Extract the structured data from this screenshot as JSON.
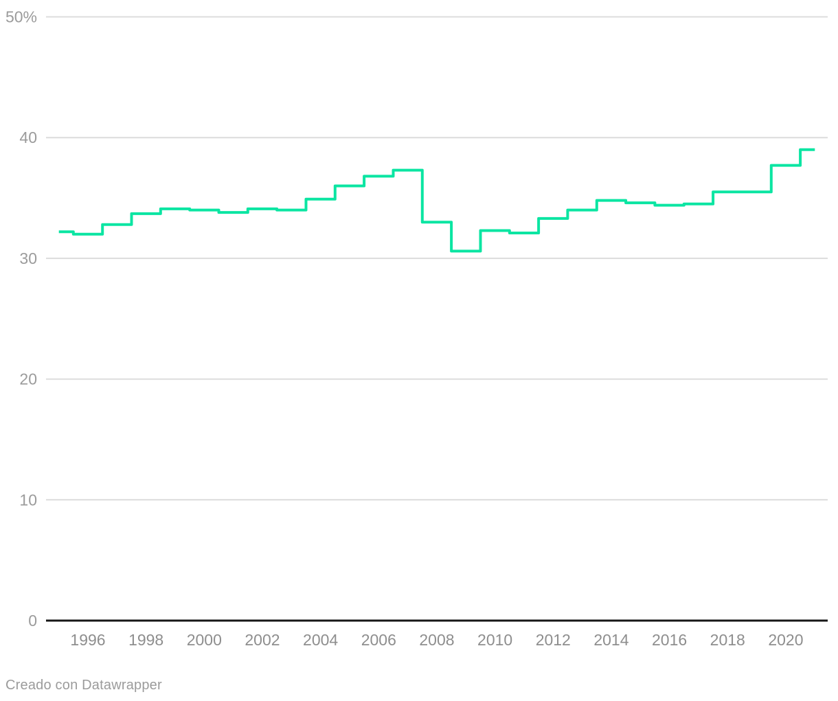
{
  "chart_data": {
    "type": "line",
    "line_style": "step-center",
    "title": "",
    "xlabel": "",
    "ylabel": "",
    "legend": "none",
    "grid": true,
    "unit": "%",
    "xlim": [
      1995,
      2021
    ],
    "ylim": [
      0,
      50
    ],
    "x": [
      1995,
      1996,
      1997,
      1998,
      1999,
      2000,
      2001,
      2002,
      2003,
      2004,
      2005,
      2006,
      2007,
      2008,
      2009,
      2010,
      2011,
      2012,
      2013,
      2014,
      2015,
      2016,
      2017,
      2018,
      2019,
      2020,
      2021
    ],
    "values": [
      32.2,
      32.0,
      32.8,
      33.7,
      34.1,
      34.0,
      33.8,
      34.1,
      34.0,
      34.9,
      36.0,
      36.8,
      37.3,
      33.0,
      30.6,
      32.3,
      32.1,
      33.3,
      34.0,
      34.8,
      34.6,
      34.4,
      34.5,
      35.5,
      35.5,
      37.7,
      39.0
    ],
    "y_ticks": [
      {
        "v": 50,
        "label": "50%"
      },
      {
        "v": 40,
        "label": "40"
      },
      {
        "v": 30,
        "label": "30"
      },
      {
        "v": 20,
        "label": "20"
      },
      {
        "v": 10,
        "label": "10"
      },
      {
        "v": 0,
        "label": "0"
      }
    ],
    "x_ticks": [
      {
        "year": 1996,
        "label": "1996"
      },
      {
        "year": 1998,
        "label": "1998"
      },
      {
        "year": 2000,
        "label": "2000"
      },
      {
        "year": 2002,
        "label": "2002"
      },
      {
        "year": 2004,
        "label": "2004"
      },
      {
        "year": 2006,
        "label": "2006"
      },
      {
        "year": 2008,
        "label": "2008"
      },
      {
        "year": 2010,
        "label": "2010"
      },
      {
        "year": 2012,
        "label": "2012"
      },
      {
        "year": 2014,
        "label": "2014"
      },
      {
        "year": 2016,
        "label": "2016"
      },
      {
        "year": 2018,
        "label": "2018"
      },
      {
        "year": 2020,
        "label": "2020"
      }
    ]
  },
  "colors": {
    "line": "#0be5a2",
    "grid": "#dcdcdc",
    "axis": "#161616",
    "y_tick_label": "#9b9b9b",
    "x_tick_label": "#8e8e8e",
    "footer_text": "#9b9b9b",
    "background": "#ffffff"
  },
  "footer": {
    "credit": "Creado con Datawrapper"
  }
}
